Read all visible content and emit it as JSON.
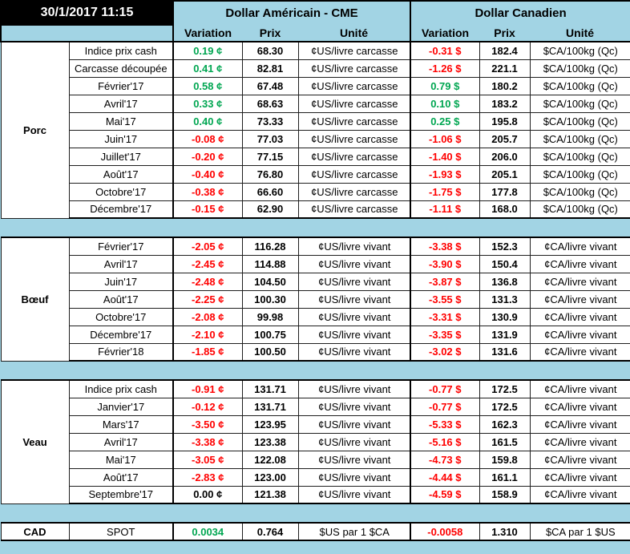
{
  "meta": {
    "datetime": "30/1/2017 11:15"
  },
  "columns": {
    "usd_group": "Dollar Américain - CME",
    "cad_group": "Dollar Canadien",
    "variation": "Variation",
    "prix": "Prix",
    "unite": "Unité"
  },
  "colors": {
    "positive": "#00A651",
    "negative": "#FF0000",
    "neutral": "#000000",
    "panel_blue": "#A2D4E4"
  },
  "sections": [
    {
      "name": "Porc",
      "rows": [
        {
          "label": "Indice prix cash",
          "usd_var": "0.19 ¢",
          "usd_prix": "68.30",
          "usd_unit": "¢US/livre carcasse",
          "cad_var": "-0.31 $",
          "cad_prix": "182.4",
          "cad_unit": "$CA/100kg (Qc)"
        },
        {
          "label": "Carcasse découpée",
          "usd_var": "0.41 ¢",
          "usd_prix": "82.81",
          "usd_unit": "¢US/livre carcasse",
          "cad_var": "-1.26 $",
          "cad_prix": "221.1",
          "cad_unit": "$CA/100kg (Qc)"
        },
        {
          "label": "Février'17",
          "usd_var": "0.58 ¢",
          "usd_prix": "67.48",
          "usd_unit": "¢US/livre carcasse",
          "cad_var": "0.79 $",
          "cad_prix": "180.2",
          "cad_unit": "$CA/100kg (Qc)"
        },
        {
          "label": "Avril'17",
          "usd_var": "0.33 ¢",
          "usd_prix": "68.63",
          "usd_unit": "¢US/livre carcasse",
          "cad_var": "0.10 $",
          "cad_prix": "183.2",
          "cad_unit": "$CA/100kg (Qc)"
        },
        {
          "label": "Mai'17",
          "usd_var": "0.40 ¢",
          "usd_prix": "73.33",
          "usd_unit": "¢US/livre carcasse",
          "cad_var": "0.25 $",
          "cad_prix": "195.8",
          "cad_unit": "$CA/100kg (Qc)"
        },
        {
          "label": "Juin'17",
          "usd_var": "-0.08 ¢",
          "usd_prix": "77.03",
          "usd_unit": "¢US/livre carcasse",
          "cad_var": "-1.06 $",
          "cad_prix": "205.7",
          "cad_unit": "$CA/100kg (Qc)"
        },
        {
          "label": "Juillet'17",
          "usd_var": "-0.20 ¢",
          "usd_prix": "77.15",
          "usd_unit": "¢US/livre carcasse",
          "cad_var": "-1.40 $",
          "cad_prix": "206.0",
          "cad_unit": "$CA/100kg (Qc)"
        },
        {
          "label": "Août'17",
          "usd_var": "-0.40 ¢",
          "usd_prix": "76.80",
          "usd_unit": "¢US/livre carcasse",
          "cad_var": "-1.93 $",
          "cad_prix": "205.1",
          "cad_unit": "$CA/100kg (Qc)"
        },
        {
          "label": "Octobre'17",
          "usd_var": "-0.38 ¢",
          "usd_prix": "66.60",
          "usd_unit": "¢US/livre carcasse",
          "cad_var": "-1.75 $",
          "cad_prix": "177.8",
          "cad_unit": "$CA/100kg (Qc)"
        },
        {
          "label": "Décembre'17",
          "usd_var": "-0.15 ¢",
          "usd_prix": "62.90",
          "usd_unit": "¢US/livre carcasse",
          "cad_var": "-1.11 $",
          "cad_prix": "168.0",
          "cad_unit": "$CA/100kg (Qc)"
        }
      ]
    },
    {
      "name": "Bœuf",
      "rows": [
        {
          "label": "Février'17",
          "usd_var": "-2.05 ¢",
          "usd_prix": "116.28",
          "usd_unit": "¢US/livre vivant",
          "cad_var": "-3.38 $",
          "cad_prix": "152.3",
          "cad_unit": "¢CA/livre vivant"
        },
        {
          "label": "Avril'17",
          "usd_var": "-2.45 ¢",
          "usd_prix": "114.88",
          "usd_unit": "¢US/livre vivant",
          "cad_var": "-3.90 $",
          "cad_prix": "150.4",
          "cad_unit": "¢CA/livre vivant"
        },
        {
          "label": "Juin'17",
          "usd_var": "-2.48 ¢",
          "usd_prix": "104.50",
          "usd_unit": "¢US/livre vivant",
          "cad_var": "-3.87 $",
          "cad_prix": "136.8",
          "cad_unit": "¢CA/livre vivant"
        },
        {
          "label": "Août'17",
          "usd_var": "-2.25 ¢",
          "usd_prix": "100.30",
          "usd_unit": "¢US/livre vivant",
          "cad_var": "-3.55 $",
          "cad_prix": "131.3",
          "cad_unit": "¢CA/livre vivant"
        },
        {
          "label": "Octobre'17",
          "usd_var": "-2.08 ¢",
          "usd_prix": "99.98",
          "usd_unit": "¢US/livre vivant",
          "cad_var": "-3.31 $",
          "cad_prix": "130.9",
          "cad_unit": "¢CA/livre vivant"
        },
        {
          "label": "Décembre'17",
          "usd_var": "-2.10 ¢",
          "usd_prix": "100.75",
          "usd_unit": "¢US/livre vivant",
          "cad_var": "-3.35 $",
          "cad_prix": "131.9",
          "cad_unit": "¢CA/livre vivant"
        },
        {
          "label": "Février'18",
          "usd_var": "-1.85 ¢",
          "usd_prix": "100.50",
          "usd_unit": "¢US/livre vivant",
          "cad_var": "-3.02 $",
          "cad_prix": "131.6",
          "cad_unit": "¢CA/livre vivant"
        }
      ]
    },
    {
      "name": "Veau",
      "rows": [
        {
          "label": "Indice prix cash",
          "usd_var": "-0.91 ¢",
          "usd_prix": "131.71",
          "usd_unit": "¢US/livre vivant",
          "cad_var": "-0.77 $",
          "cad_prix": "172.5",
          "cad_unit": "¢CA/livre vivant"
        },
        {
          "label": "Janvier'17",
          "usd_var": "-0.12 ¢",
          "usd_prix": "131.71",
          "usd_unit": "¢US/livre vivant",
          "cad_var": "-0.77 $",
          "cad_prix": "172.5",
          "cad_unit": "¢CA/livre vivant"
        },
        {
          "label": "Mars'17",
          "usd_var": "-3.50 ¢",
          "usd_prix": "123.95",
          "usd_unit": "¢US/livre vivant",
          "cad_var": "-5.33 $",
          "cad_prix": "162.3",
          "cad_unit": "¢CA/livre vivant"
        },
        {
          "label": "Avril'17",
          "usd_var": "-3.38 ¢",
          "usd_prix": "123.38",
          "usd_unit": "¢US/livre vivant",
          "cad_var": "-5.16 $",
          "cad_prix": "161.5",
          "cad_unit": "¢CA/livre vivant"
        },
        {
          "label": "Mai'17",
          "usd_var": "-3.05 ¢",
          "usd_prix": "122.08",
          "usd_unit": "¢US/livre vivant",
          "cad_var": "-4.73 $",
          "cad_prix": "159.8",
          "cad_unit": "¢CA/livre vivant"
        },
        {
          "label": "Août'17",
          "usd_var": "-2.83 ¢",
          "usd_prix": "123.00",
          "usd_unit": "¢US/livre vivant",
          "cad_var": "-4.44 $",
          "cad_prix": "161.1",
          "cad_unit": "¢CA/livre vivant"
        },
        {
          "label": "Septembre'17",
          "usd_var": "0.00 ¢",
          "usd_prix": "121.38",
          "usd_unit": "¢US/livre vivant",
          "cad_var": "-4.59 $",
          "cad_prix": "158.9",
          "cad_unit": "¢CA/livre vivant"
        }
      ]
    },
    {
      "name": "CAD",
      "rows": [
        {
          "label": "SPOT",
          "usd_var": "0.0034",
          "usd_prix": "0.764",
          "usd_unit": "$US par 1 $CA",
          "cad_var": "-0.0058",
          "cad_prix": "1.310",
          "cad_unit": "$CA par 1 $US"
        }
      ]
    }
  ]
}
